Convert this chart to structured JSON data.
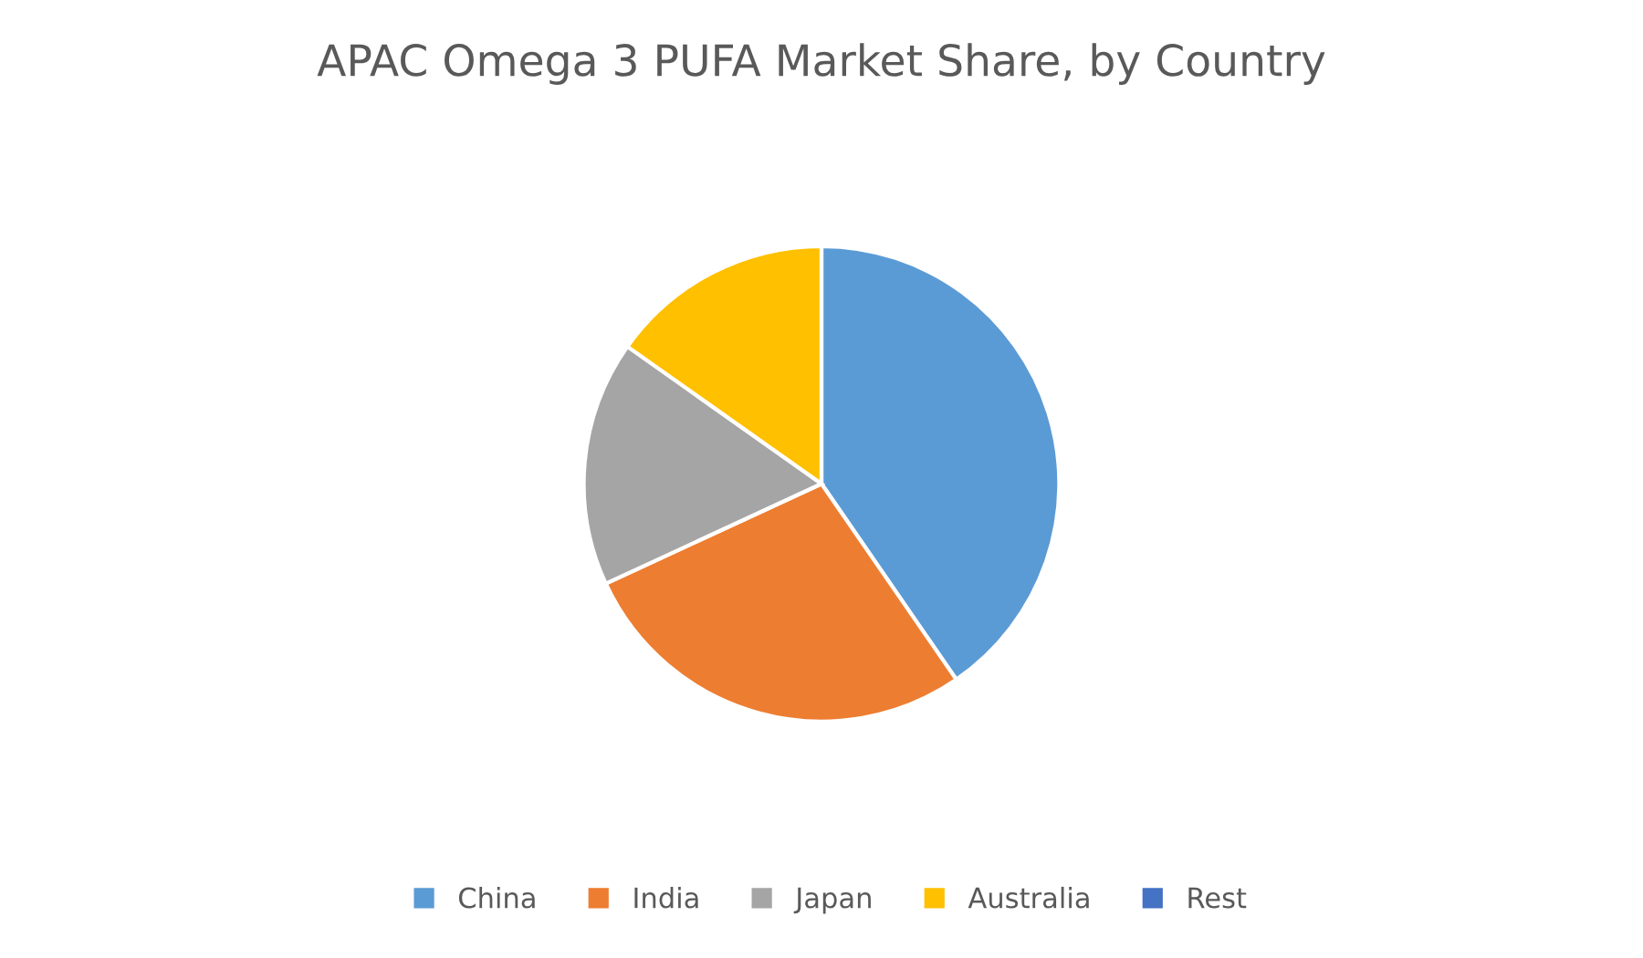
{
  "chart_data": {
    "type": "pie",
    "title": "APAC Omega 3 PUFA Market Share, by Country",
    "categories": [
      "China",
      "India",
      "Japan",
      "Australia",
      "Rest"
    ],
    "values": [
      40.4,
      27.7,
      16.7,
      15.2,
      0
    ],
    "colors": [
      "#5b9bd5",
      "#ed7d31",
      "#a5a5a5",
      "#ffc000",
      "#4472c4"
    ],
    "legend": "bottom"
  }
}
